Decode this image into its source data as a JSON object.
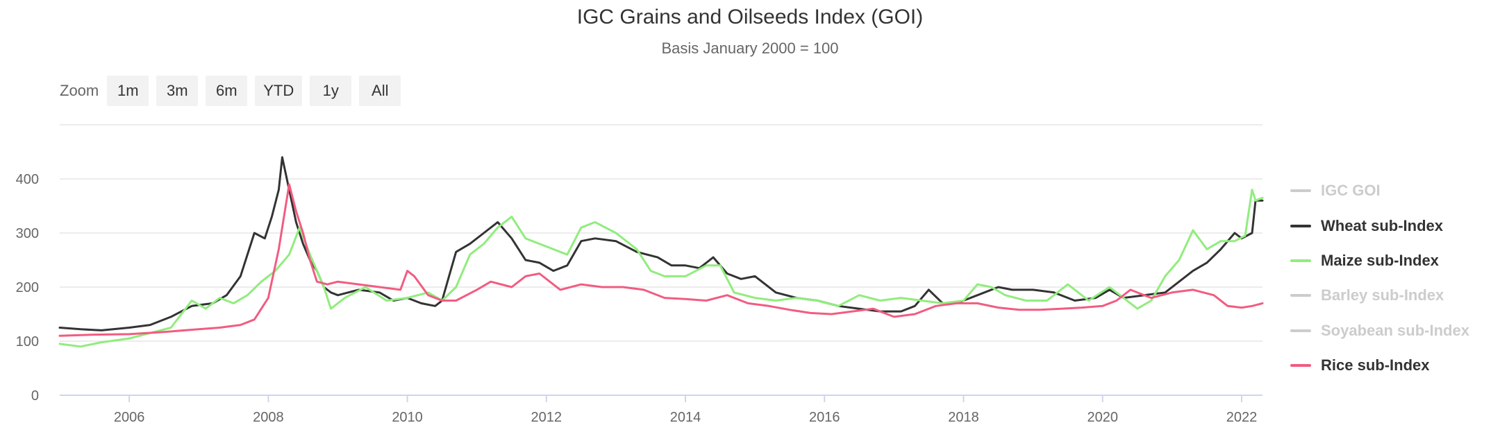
{
  "title": "IGC Grains and Oilseeds Index (GOI)",
  "subtitle": "Basis January 2000 = 100",
  "zoom": {
    "label": "Zoom",
    "buttons": [
      "1m",
      "3m",
      "6m",
      "YTD",
      "1y",
      "All"
    ]
  },
  "chart_data": {
    "type": "line",
    "title": "IGC Grains and Oilseeds Index (GOI)",
    "subtitle": "Basis January 2000 = 100",
    "xlim": [
      2005.0,
      2022.3
    ],
    "ylim": [
      0,
      500
    ],
    "y_ticks": [
      0,
      100,
      200,
      300,
      400
    ],
    "x_ticks": [
      2006,
      2008,
      2010,
      2012,
      2014,
      2016,
      2018,
      2020,
      2022
    ],
    "grid": true,
    "legend_position": "right",
    "series": [
      {
        "name": "IGC GOI",
        "visible": false,
        "color": "#cccccc",
        "x": [],
        "y": []
      },
      {
        "name": "Wheat sub-Index",
        "visible": true,
        "color": "#333333",
        "x": [
          2005.0,
          2005.3,
          2005.6,
          2006.0,
          2006.3,
          2006.6,
          2006.9,
          2007.2,
          2007.4,
          2007.6,
          2007.8,
          2007.95,
          2008.05,
          2008.15,
          2008.2,
          2008.3,
          2008.4,
          2008.5,
          2008.6,
          2008.7,
          2008.8,
          2008.9,
          2009.0,
          2009.3,
          2009.6,
          2009.8,
          2010.0,
          2010.2,
          2010.4,
          2010.5,
          2010.6,
          2010.7,
          2010.9,
          2011.1,
          2011.3,
          2011.5,
          2011.7,
          2011.9,
          2012.1,
          2012.3,
          2012.5,
          2012.7,
          2013.0,
          2013.3,
          2013.6,
          2013.8,
          2014.0,
          2014.2,
          2014.4,
          2014.6,
          2014.8,
          2015.0,
          2015.3,
          2015.6,
          2015.9,
          2016.2,
          2016.5,
          2016.8,
          2017.1,
          2017.3,
          2017.5,
          2017.7,
          2017.9,
          2018.1,
          2018.3,
          2018.5,
          2018.7,
          2019.0,
          2019.3,
          2019.6,
          2019.9,
          2020.1,
          2020.3,
          2020.6,
          2020.9,
          2021.1,
          2021.3,
          2021.5,
          2021.7,
          2021.9,
          2022.0,
          2022.15,
          2022.2,
          2022.3
        ],
        "y": [
          125,
          122,
          120,
          125,
          130,
          145,
          165,
          170,
          185,
          220,
          300,
          290,
          330,
          380,
          440,
          380,
          320,
          280,
          250,
          230,
          200,
          190,
          185,
          195,
          190,
          175,
          180,
          170,
          165,
          175,
          220,
          265,
          280,
          300,
          320,
          290,
          250,
          245,
          230,
          240,
          285,
          290,
          285,
          265,
          255,
          240,
          240,
          235,
          255,
          225,
          215,
          220,
          190,
          180,
          175,
          165,
          160,
          155,
          155,
          165,
          195,
          170,
          170,
          180,
          190,
          200,
          195,
          195,
          190,
          175,
          180,
          195,
          180,
          185,
          190,
          210,
          230,
          245,
          270,
          300,
          290,
          300,
          360,
          360
        ]
      },
      {
        "name": "Maize sub-Index",
        "visible": true,
        "color": "#90ed7d",
        "x": [
          2005.0,
          2005.3,
          2005.6,
          2006.0,
          2006.3,
          2006.6,
          2006.9,
          2007.1,
          2007.3,
          2007.5,
          2007.7,
          2007.9,
          2008.1,
          2008.3,
          2008.45,
          2008.6,
          2008.8,
          2008.9,
          2009.1,
          2009.4,
          2009.7,
          2010.0,
          2010.3,
          2010.5,
          2010.7,
          2010.9,
          2011.1,
          2011.3,
          2011.5,
          2011.7,
          2011.9,
          2012.1,
          2012.3,
          2012.5,
          2012.7,
          2013.0,
          2013.3,
          2013.5,
          2013.7,
          2014.0,
          2014.3,
          2014.5,
          2014.7,
          2015.0,
          2015.3,
          2015.6,
          2015.9,
          2016.2,
          2016.5,
          2016.8,
          2017.1,
          2017.4,
          2017.7,
          2018.0,
          2018.2,
          2018.4,
          2018.6,
          2018.9,
          2019.2,
          2019.5,
          2019.8,
          2020.1,
          2020.3,
          2020.5,
          2020.7,
          2020.9,
          2021.1,
          2021.3,
          2021.5,
          2021.7,
          2021.9,
          2022.05,
          2022.15,
          2022.2,
          2022.3
        ],
        "y": [
          95,
          90,
          98,
          105,
          115,
          125,
          175,
          160,
          180,
          170,
          185,
          210,
          230,
          260,
          310,
          260,
          200,
          160,
          180,
          200,
          175,
          180,
          190,
          175,
          200,
          260,
          280,
          310,
          330,
          290,
          280,
          270,
          260,
          310,
          320,
          300,
          270,
          230,
          220,
          220,
          240,
          240,
          190,
          180,
          175,
          180,
          175,
          165,
          185,
          175,
          180,
          175,
          170,
          175,
          205,
          200,
          185,
          175,
          175,
          205,
          175,
          200,
          180,
          160,
          175,
          220,
          250,
          305,
          270,
          285,
          285,
          295,
          380,
          360,
          365
        ]
      },
      {
        "name": "Barley sub-Index",
        "visible": false,
        "color": "#cccccc",
        "x": [],
        "y": []
      },
      {
        "name": "Soyabean sub-Index",
        "visible": false,
        "color": "#cccccc",
        "x": [],
        "y": []
      },
      {
        "name": "Rice sub-Index",
        "visible": true,
        "color": "#f15c80",
        "x": [
          2005.0,
          2005.5,
          2006.0,
          2006.5,
          2007.0,
          2007.3,
          2007.6,
          2007.8,
          2008.0,
          2008.15,
          2008.3,
          2008.4,
          2008.5,
          2008.6,
          2008.7,
          2008.85,
          2009.0,
          2009.3,
          2009.6,
          2009.9,
          2010.0,
          2010.1,
          2010.3,
          2010.5,
          2010.7,
          2011.0,
          2011.2,
          2011.5,
          2011.7,
          2011.9,
          2012.2,
          2012.5,
          2012.8,
          2013.1,
          2013.4,
          2013.7,
          2014.0,
          2014.3,
          2014.6,
          2014.9,
          2015.2,
          2015.5,
          2015.8,
          2016.1,
          2016.4,
          2016.7,
          2017.0,
          2017.3,
          2017.6,
          2017.9,
          2018.2,
          2018.5,
          2018.8,
          2019.1,
          2019.4,
          2019.7,
          2020.0,
          2020.2,
          2020.4,
          2020.7,
          2021.0,
          2021.3,
          2021.6,
          2021.8,
          2022.0,
          2022.15,
          2022.3
        ],
        "y": [
          110,
          112,
          113,
          117,
          122,
          125,
          130,
          140,
          180,
          270,
          390,
          340,
          300,
          250,
          210,
          205,
          210,
          205,
          200,
          195,
          230,
          220,
          185,
          175,
          175,
          195,
          210,
          200,
          220,
          225,
          195,
          205,
          200,
          200,
          195,
          180,
          178,
          175,
          185,
          170,
          165,
          158,
          152,
          150,
          155,
          160,
          145,
          150,
          165,
          170,
          170,
          162,
          158,
          158,
          160,
          162,
          165,
          175,
          195,
          180,
          190,
          195,
          185,
          165,
          162,
          165,
          170
        ]
      }
    ]
  }
}
